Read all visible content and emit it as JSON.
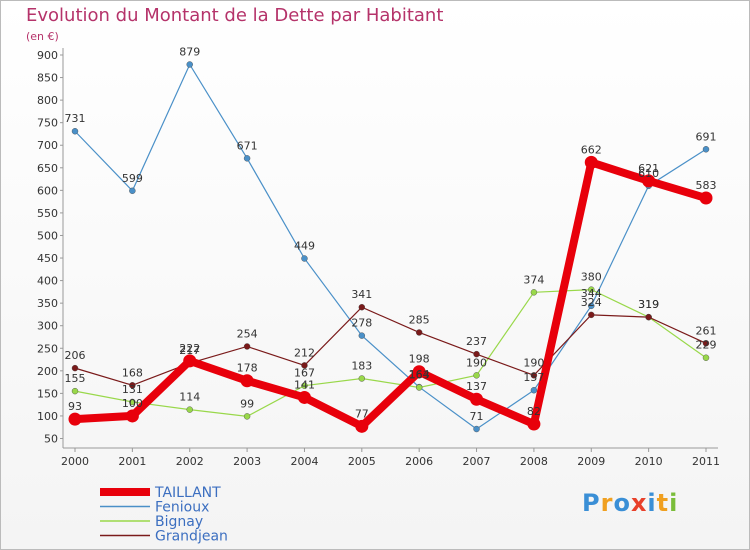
{
  "title": "Evolution du Montant de la Dette par Habitant",
  "subtitle": "(en €)",
  "logo_text": "Proxiti",
  "chart_data": {
    "type": "line",
    "categories": [
      "2000",
      "2001",
      "2002",
      "2003",
      "2004",
      "2005",
      "2006",
      "2007",
      "2008",
      "2009",
      "2010",
      "2011"
    ],
    "yticks": [
      50,
      100,
      150,
      200,
      250,
      300,
      350,
      400,
      450,
      500,
      550,
      600,
      650,
      700,
      750,
      800,
      850,
      900
    ],
    "ylim": [
      40,
      920
    ],
    "grid": false,
    "legend_position": "bottom-left",
    "series": [
      {
        "name": "TAILLANT",
        "color": "#e8000b",
        "width": 8,
        "values": [
          93,
          100,
          222,
          178,
          141,
          77,
          198,
          137,
          82,
          662,
          621,
          583
        ],
        "labels": [
          "93",
          "100",
          "222",
          "178",
          "141",
          "77",
          "198",
          "137",
          "82",
          "662",
          "621",
          "583"
        ]
      },
      {
        "name": "Fenioux",
        "color": "#4a90c8",
        "width": 1.2,
        "values": [
          731,
          599,
          879,
          671,
          449,
          278,
          164,
          71,
          157,
          344,
          610,
          691
        ],
        "labels": [
          "731",
          "599",
          "879",
          "671",
          "449",
          "278",
          "164",
          "71",
          "157",
          "344",
          "610",
          "691"
        ]
      },
      {
        "name": "Bignay",
        "color": "#99d84a",
        "width": 1.2,
        "values": [
          155,
          131,
          114,
          99,
          167,
          183,
          163,
          190,
          374,
          380,
          319,
          229
        ],
        "labels": [
          "155",
          "131",
          "114",
          "99",
          "167",
          "183",
          "163",
          "190",
          "374",
          "380",
          "319",
          "229"
        ]
      },
      {
        "name": "Grandjean",
        "color": "#7a1a1a",
        "width": 1.2,
        "values": [
          206,
          168,
          217,
          254,
          212,
          341,
          285,
          237,
          190,
          324,
          319,
          261
        ],
        "labels": [
          "206",
          "168",
          "217",
          "254",
          "212",
          "341",
          "285",
          "237",
          "190",
          "324",
          "319",
          "261"
        ]
      }
    ]
  }
}
